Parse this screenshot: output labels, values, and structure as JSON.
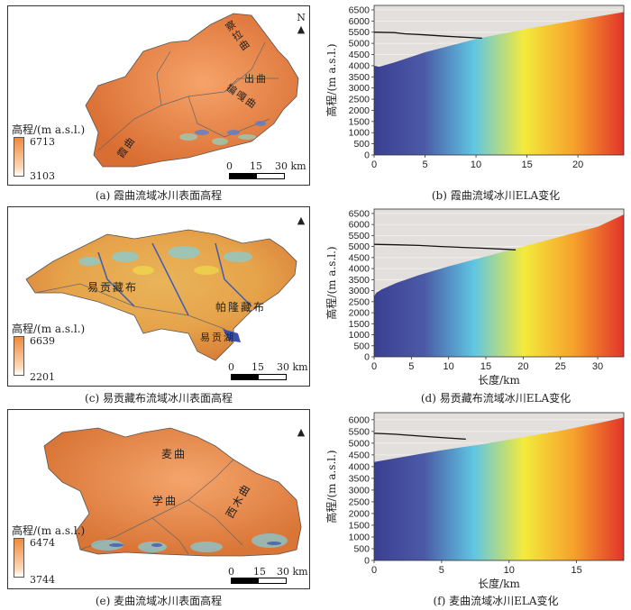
{
  "maps": [
    {
      "id": "a",
      "caption": "(a) 霞曲流域冰川表面高程",
      "legend_title": "高程/(m a.s.l.)",
      "legend_max": "6713",
      "legend_min": "3103",
      "scale_labels": [
        "0",
        "15",
        "30 km"
      ],
      "north": "N",
      "rivers": [
        "察拉曲",
        "出曲",
        "犏嘎曲",
        "霞曲"
      ]
    },
    {
      "id": "c",
      "caption": "(c) 易贡藏布流域冰川表面高程",
      "legend_title": "高程/(m a.s.l.)",
      "legend_max": "6639",
      "legend_min": "2201",
      "scale_labels": [
        "0",
        "15",
        "30 km"
      ],
      "north": "",
      "rivers": [
        "易贡藏布",
        "帕隆藏布",
        "易贡湖"
      ]
    },
    {
      "id": "e",
      "caption": "(e) 麦曲流域冰川表面高程",
      "legend_title": "高程/(m a.s.l.)",
      "legend_max": "6474",
      "legend_min": "3744",
      "scale_labels": [
        "0",
        "15",
        "30 km"
      ],
      "north": "",
      "rivers": [
        "麦曲",
        "学曲",
        "西木曲"
      ]
    }
  ],
  "chart_data": [
    {
      "type": "area",
      "caption": "(b) 霞曲流域冰川ELA变化",
      "ylabel": "高程/(m a.s.l.)",
      "xlabel": "",
      "x_ticks": [
        "0",
        "5",
        "10",
        "15",
        "20"
      ],
      "y_ticks": [
        "0",
        "500",
        "1000",
        "1500",
        "2000",
        "2500",
        "3000",
        "3500",
        "4000",
        "4500",
        "5000",
        "5500",
        "6000",
        "6500"
      ],
      "xlim": [
        0,
        24.5
      ],
      "ylim": [
        0,
        6700
      ],
      "surface": {
        "x": [
          0,
          0.5,
          2,
          5,
          10,
          15,
          20,
          24.5
        ],
        "y": [
          4000,
          3950,
          4150,
          4600,
          5200,
          5650,
          6050,
          6400
        ]
      },
      "ela": {
        "x": [
          0,
          2,
          3,
          5,
          7,
          9,
          10.6
        ],
        "y": [
          5500,
          5480,
          5430,
          5380,
          5320,
          5270,
          5230
        ]
      }
    },
    {
      "type": "area",
      "caption": "(d) 易贡藏布流域冰川ELA变化",
      "ylabel": "高程/(m a.s.l.)",
      "xlabel": "长度/km",
      "x_ticks": [
        "0",
        "5",
        "10",
        "15",
        "20",
        "25",
        "30"
      ],
      "y_ticks": [
        "0",
        "500",
        "1000",
        "1500",
        "2000",
        "2500",
        "3000",
        "3500",
        "4000",
        "4500",
        "5000",
        "5500",
        "6000",
        "6500"
      ],
      "xlim": [
        0,
        33.5
      ],
      "ylim": [
        0,
        6700
      ],
      "surface": {
        "x": [
          0,
          0.3,
          1,
          3,
          6,
          10,
          15,
          20,
          25,
          30,
          33.5
        ],
        "y": [
          2750,
          2900,
          3050,
          3350,
          3700,
          4100,
          4550,
          5000,
          5450,
          5900,
          6450
        ]
      },
      "ela": {
        "x": [
          0,
          3,
          6,
          9,
          12,
          15,
          18,
          19
        ],
        "y": [
          5100,
          5080,
          5050,
          5000,
          4960,
          4920,
          4870,
          4850
        ]
      }
    },
    {
      "type": "area",
      "caption": "(f) 麦曲流域冰川ELA变化",
      "ylabel": "高程/(m a.s.l.)",
      "xlabel": "长度/km",
      "x_ticks": [
        "0",
        "5",
        "10",
        "15"
      ],
      "y_ticks": [
        "0",
        "500",
        "1000",
        "1500",
        "2000",
        "2500",
        "3000",
        "3500",
        "4000",
        "4500",
        "5000",
        "5500",
        "6000"
      ],
      "xlim": [
        0,
        18.5
      ],
      "ylim": [
        0,
        6300
      ],
      "surface": {
        "x": [
          0,
          1,
          3,
          5,
          8,
          11,
          14,
          17,
          18.5
        ],
        "y": [
          4200,
          4300,
          4500,
          4700,
          4950,
          5250,
          5550,
          5900,
          6100
        ]
      },
      "ela": {
        "x": [
          0,
          1.5,
          3,
          4.5,
          6,
          6.8
        ],
        "y": [
          5420,
          5380,
          5320,
          5260,
          5200,
          5170
        ]
      }
    }
  ],
  "colors": {
    "gradient": [
      "#3b3f93",
      "#4b5aa6",
      "#5fc6e3",
      "#f4ea3c",
      "#f6a12b",
      "#e2342b"
    ],
    "sky": "#e2dfdc",
    "ela_line": "#111111"
  }
}
